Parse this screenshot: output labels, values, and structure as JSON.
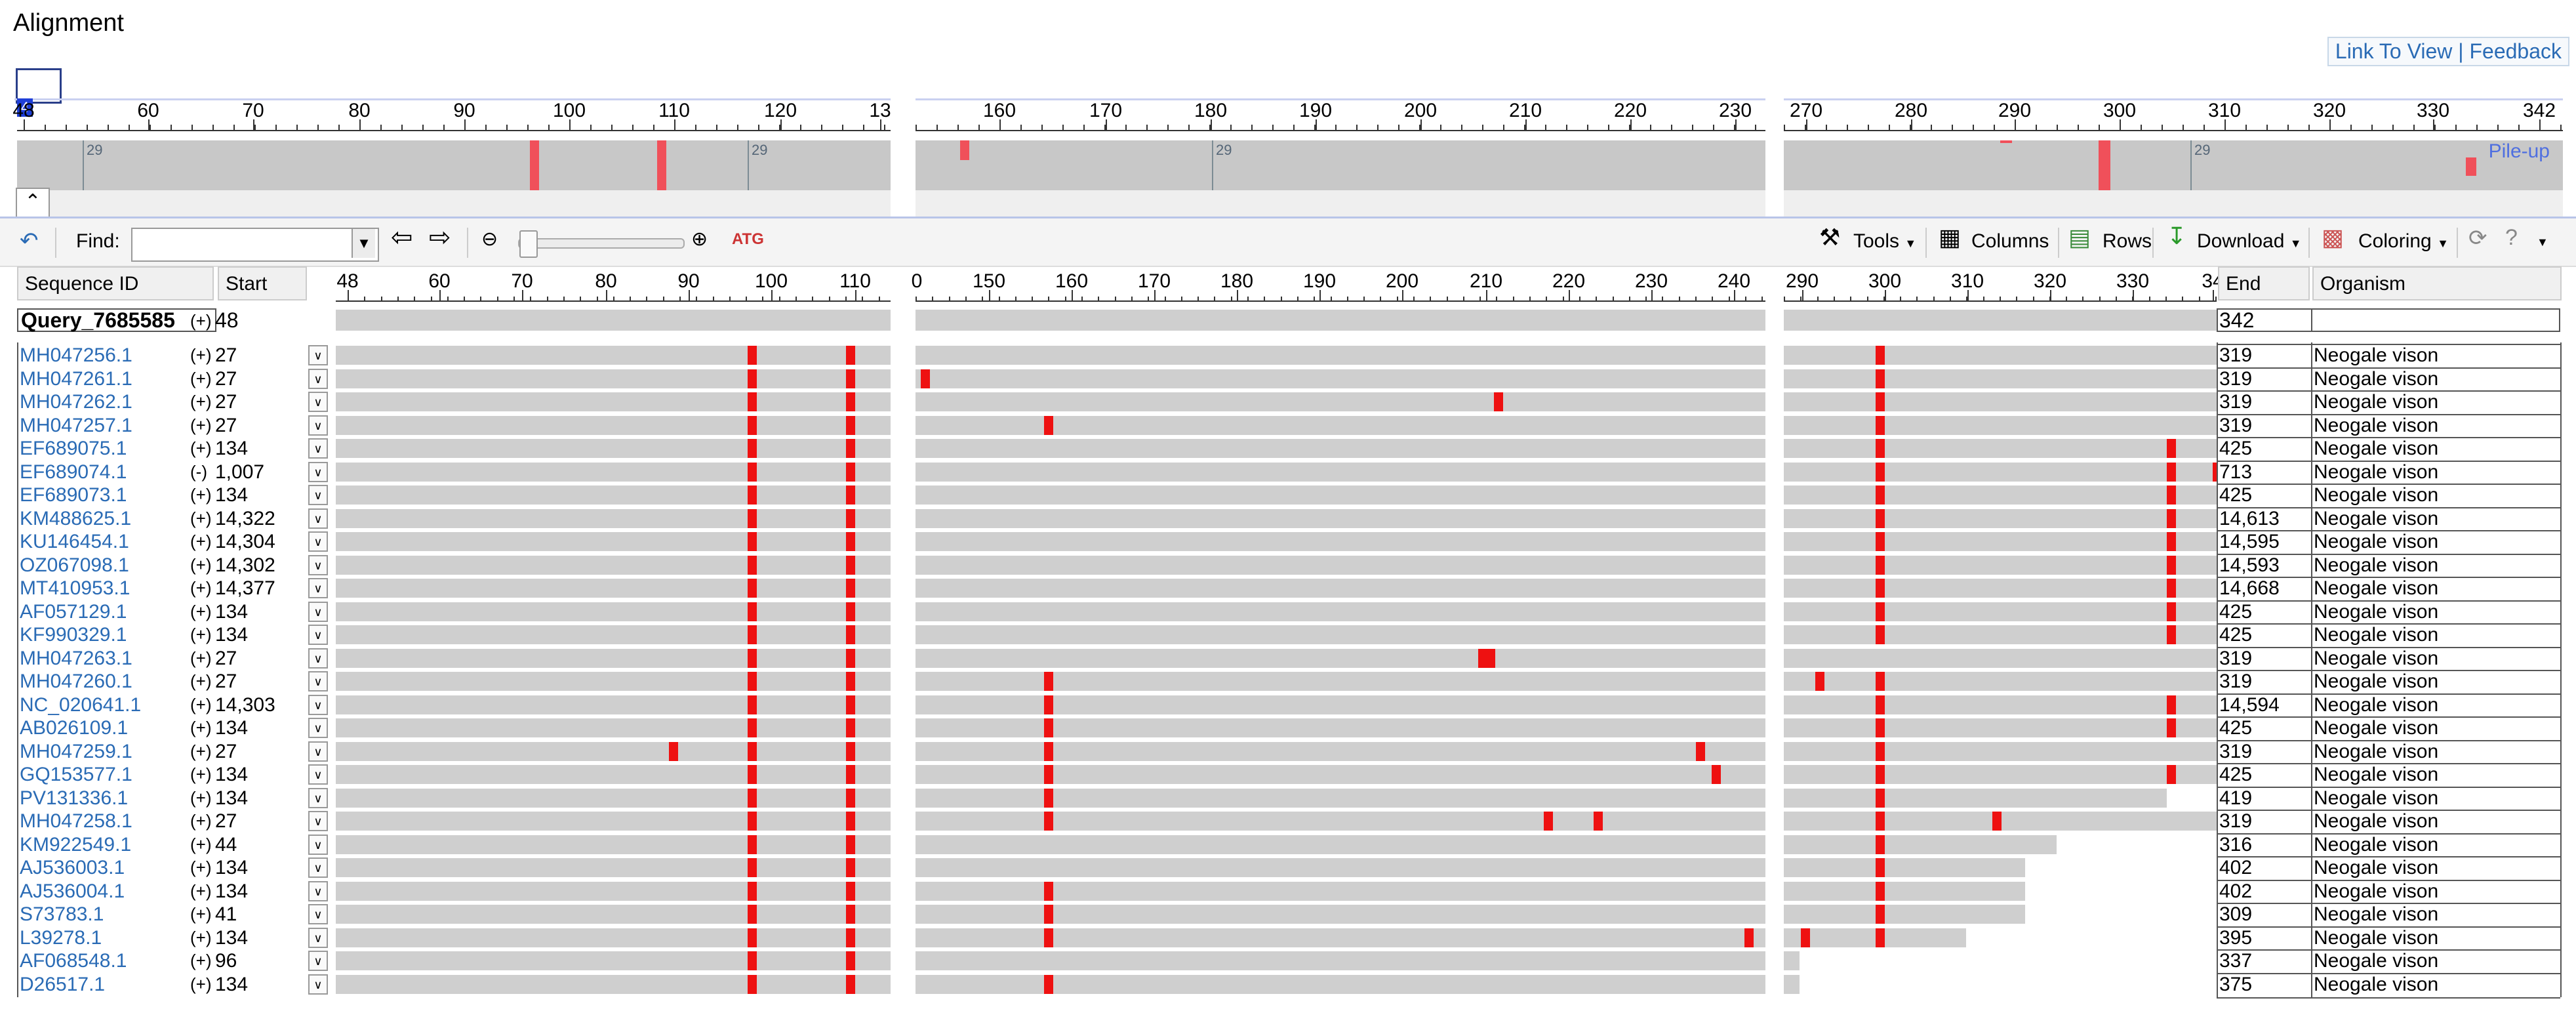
{
  "header": {
    "title": "Alignment",
    "link_to_view": "Link To View",
    "separator": "|",
    "feedback": "Feedback"
  },
  "overview": {
    "ruler1": [
      "48",
      "60",
      "70",
      "80",
      "90",
      "100",
      "110",
      "120",
      "13"
    ],
    "ruler2": [
      "160",
      "170",
      "180",
      "190",
      "200",
      "210",
      "220",
      "230"
    ],
    "ruler3": [
      "270",
      "280",
      "290",
      "300",
      "310",
      "320",
      "330",
      "342"
    ],
    "small_labels": [
      "29",
      "29",
      "29",
      "29"
    ],
    "pileup": "Pile-up",
    "start_marker": "4"
  },
  "toolbar": {
    "find_label": "Find:",
    "find_value": "",
    "tools": "Tools",
    "columns": "Columns",
    "rows": "Rows",
    "download": "Download",
    "coloring": "Coloring"
  },
  "table": {
    "headers": {
      "sequence_id": "Sequence ID",
      "start": "Start",
      "end": "End",
      "organism": "Organism"
    },
    "ruler1": [
      "48",
      "60",
      "70",
      "80",
      "90",
      "100",
      "110"
    ],
    "ruler2": [
      "150",
      "160",
      "170",
      "180",
      "190",
      "200",
      "210",
      "220",
      "230",
      "240"
    ],
    "ruler2_partial": "0",
    "ruler3": [
      "290",
      "300",
      "310",
      "320",
      "330",
      "34"
    ],
    "query": {
      "id": "Query_7685585",
      "strand": "(+)",
      "start": "48",
      "end": "342",
      "organism": ""
    },
    "rows": [
      {
        "id": "MH047256.1",
        "strand": "(+)",
        "start": "27",
        "end": "319",
        "organism": "Neogale vison"
      },
      {
        "id": "MH047261.1",
        "strand": "(+)",
        "start": "27",
        "end": "319",
        "organism": "Neogale vison"
      },
      {
        "id": "MH047262.1",
        "strand": "(+)",
        "start": "27",
        "end": "319",
        "organism": "Neogale vison"
      },
      {
        "id": "MH047257.1",
        "strand": "(+)",
        "start": "27",
        "end": "319",
        "organism": "Neogale vison"
      },
      {
        "id": "EF689075.1",
        "strand": "(+)",
        "start": "134",
        "end": "425",
        "organism": "Neogale vison"
      },
      {
        "id": "EF689074.1",
        "strand": "(-)",
        "start": "1,007",
        "end": "713",
        "organism": "Neogale vison"
      },
      {
        "id": "EF689073.1",
        "strand": "(+)",
        "start": "134",
        "end": "425",
        "organism": "Neogale vison"
      },
      {
        "id": "KM488625.1",
        "strand": "(+)",
        "start": "14,322",
        "end": "14,613",
        "organism": "Neogale vison"
      },
      {
        "id": "KU146454.1",
        "strand": "(+)",
        "start": "14,304",
        "end": "14,595",
        "organism": "Neogale vison"
      },
      {
        "id": "OZ067098.1",
        "strand": "(+)",
        "start": "14,302",
        "end": "14,593",
        "organism": "Neogale vison"
      },
      {
        "id": "MT410953.1",
        "strand": "(+)",
        "start": "14,377",
        "end": "14,668",
        "organism": "Neogale vison"
      },
      {
        "id": "AF057129.1",
        "strand": "(+)",
        "start": "134",
        "end": "425",
        "organism": "Neogale vison"
      },
      {
        "id": "KF990329.1",
        "strand": "(+)",
        "start": "134",
        "end": "425",
        "organism": "Neogale vison"
      },
      {
        "id": "MH047263.1",
        "strand": "(+)",
        "start": "27",
        "end": "319",
        "organism": "Neogale vison"
      },
      {
        "id": "MH047260.1",
        "strand": "(+)",
        "start": "27",
        "end": "319",
        "organism": "Neogale vison"
      },
      {
        "id": "NC_020641.1",
        "strand": "(+)",
        "start": "14,303",
        "end": "14,594",
        "organism": "Neogale vison"
      },
      {
        "id": "AB026109.1",
        "strand": "(+)",
        "start": "134",
        "end": "425",
        "organism": "Neogale vison"
      },
      {
        "id": "MH047259.1",
        "strand": "(+)",
        "start": "27",
        "end": "319",
        "organism": "Neogale vison"
      },
      {
        "id": "GQ153577.1",
        "strand": "(+)",
        "start": "134",
        "end": "425",
        "organism": "Neogale vison"
      },
      {
        "id": "PV131336.1",
        "strand": "(+)",
        "start": "134",
        "end": "419",
        "organism": "Neogale vison"
      },
      {
        "id": "MH047258.1",
        "strand": "(+)",
        "start": "27",
        "end": "319",
        "organism": "Neogale vison"
      },
      {
        "id": "KM922549.1",
        "strand": "(+)",
        "start": "44",
        "end": "316",
        "organism": "Neogale vison"
      },
      {
        "id": "AJ536003.1",
        "strand": "(+)",
        "start": "134",
        "end": "402",
        "organism": "Neogale vison"
      },
      {
        "id": "AJ536004.1",
        "strand": "(+)",
        "start": "134",
        "end": "402",
        "organism": "Neogale vison"
      },
      {
        "id": "S73783.1",
        "strand": "(+)",
        "start": "41",
        "end": "309",
        "organism": "Neogale vison"
      },
      {
        "id": "L39278.1",
        "strand": "(+)",
        "start": "134",
        "end": "395",
        "organism": "Neogale vison"
      },
      {
        "id": "AF068548.1",
        "strand": "(+)",
        "start": "96",
        "end": "337",
        "organism": "Neogale vison"
      },
      {
        "id": "D26517.1",
        "strand": "(+)",
        "start": "134",
        "end": "375",
        "organism": "Neogale vison"
      }
    ]
  },
  "colors": {
    "link": "#2a6bb5",
    "mismatch": "#ee1111",
    "bar": "#cfcfcf"
  }
}
